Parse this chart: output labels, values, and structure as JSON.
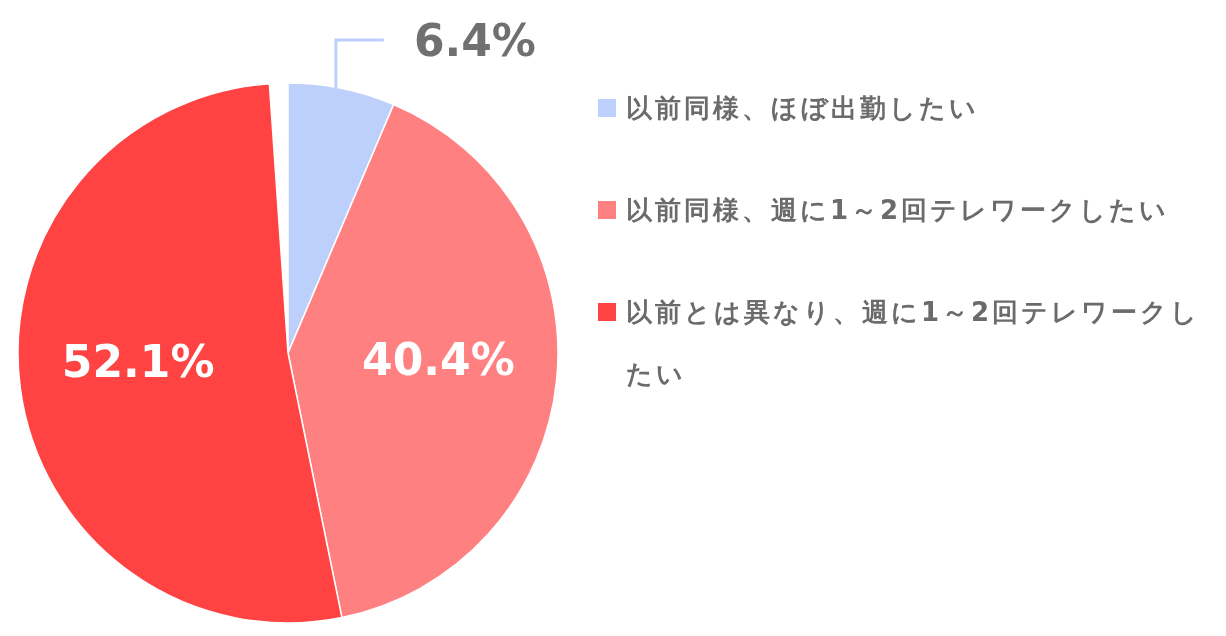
{
  "chart_data": {
    "type": "pie",
    "categories": [
      "以前同様、ほぼ出勤したい",
      "以前同様、週に1～2回テレワークしたい",
      "以前とは異なり、週に1～2回テレワークしたい"
    ],
    "values": [
      6.4,
      40.4,
      52.1
    ],
    "colors": [
      "#bdd0fc",
      "#ff8080",
      "#ff4343"
    ],
    "value_labels": [
      "6.4%",
      "40.4%",
      "52.1%"
    ],
    "legend": "right"
  }
}
